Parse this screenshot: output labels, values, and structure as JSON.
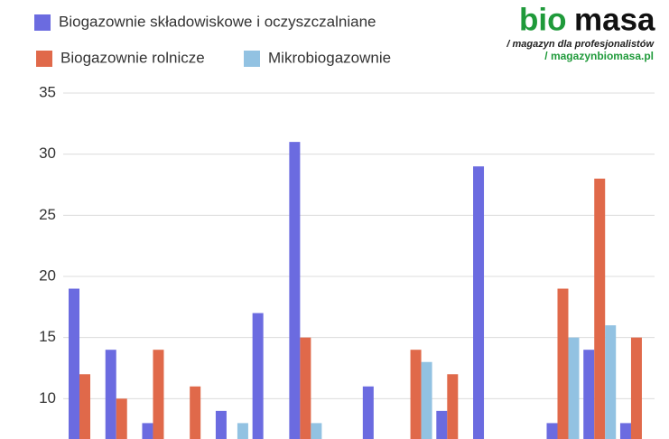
{
  "chart_data": {
    "type": "bar",
    "logo": {
      "bio": "bio",
      "masa": "masa",
      "tagline": "/ magazyn dla profesjonalistów",
      "url": "/ magazynbiomasa.pl"
    },
    "categories": [
      null,
      null,
      null,
      null,
      null,
      null,
      null,
      null,
      null,
      null,
      null,
      null,
      null,
      null,
      null,
      null
    ],
    "series": [
      {
        "name": "Biogazownie składowiskowe i oczyszczalniane",
        "color": "#6b6be0",
        "values": [
          19,
          14,
          8,
          null,
          9,
          17,
          31,
          null,
          11,
          null,
          9,
          29,
          null,
          8,
          14,
          8
        ]
      },
      {
        "name": "Biogazownie rolnicze",
        "color": "#e0694a",
        "values": [
          12,
          10,
          14,
          11,
          null,
          null,
          15,
          null,
          null,
          14,
          12,
          null,
          null,
          19,
          28,
          15
        ]
      },
      {
        "name": "Mikrobiogazownie",
        "color": "#92c2e2",
        "values": [
          null,
          null,
          null,
          null,
          8,
          null,
          8,
          null,
          null,
          13,
          null,
          null,
          null,
          15,
          16,
          null
        ]
      }
    ],
    "ylim": [
      6.7,
      35
    ],
    "yticks": [
      10,
      15,
      20,
      25,
      30,
      35
    ],
    "grid": true
  }
}
